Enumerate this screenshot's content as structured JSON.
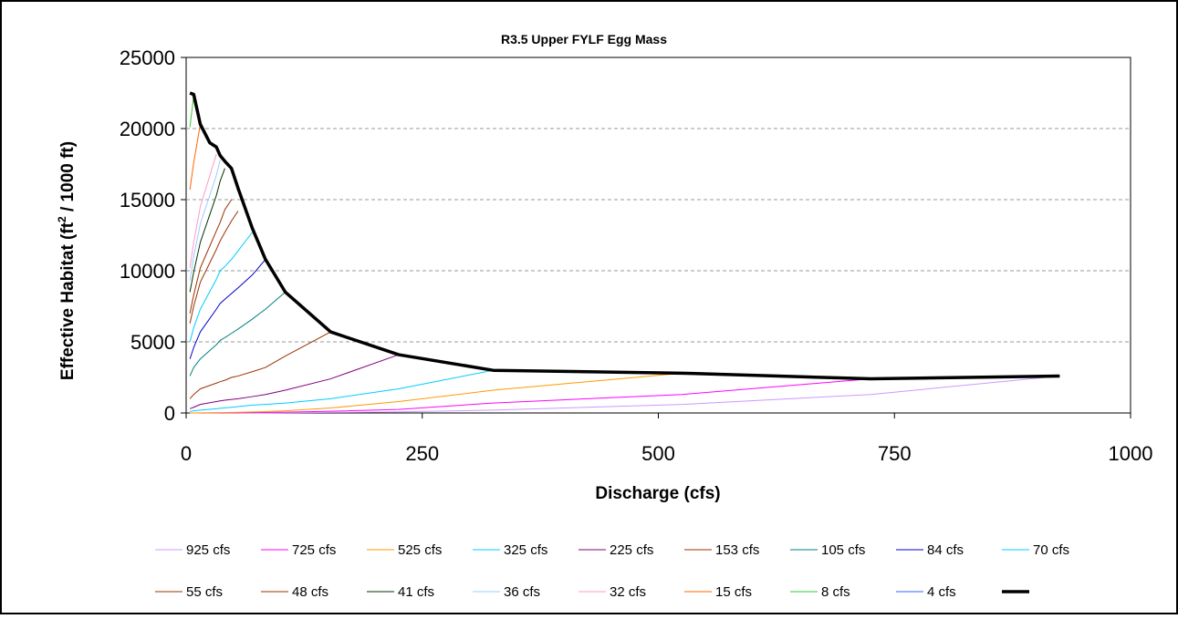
{
  "chart_data": {
    "type": "line",
    "title": "R3.5 Upper FYLF Egg Mass",
    "xlabel": "Discharge (cfs)",
    "ylabel_main": "Effective Habitat (ft",
    "ylabel_sup": "2",
    "ylabel_tail": " / 1000 ft)",
    "xlim": [
      0,
      1000
    ],
    "ylim": [
      0,
      25000
    ],
    "xticks": [
      0,
      250,
      500,
      750,
      1000
    ],
    "yticks": [
      0,
      5000,
      10000,
      15000,
      20000,
      25000
    ],
    "grid": "horizontal dashed",
    "legend_position": "bottom",
    "series": [
      {
        "name": "925 cfs",
        "color": "#cc99ff",
        "width": 1,
        "x": [
          4,
          8,
          15,
          32,
          36,
          41,
          48,
          55,
          70,
          84,
          105,
          153,
          225,
          325,
          525,
          725,
          925
        ],
        "y": [
          0,
          0,
          0,
          5,
          5,
          5,
          5,
          8,
          10,
          10,
          20,
          40,
          80,
          200,
          600,
          1300,
          2600
        ]
      },
      {
        "name": "725 cfs",
        "color": "#ff00ff",
        "width": 1,
        "x": [
          4,
          8,
          15,
          32,
          36,
          41,
          48,
          55,
          70,
          84,
          105,
          153,
          225,
          325,
          525,
          725
        ],
        "y": [
          0,
          0,
          0,
          10,
          10,
          12,
          15,
          20,
          30,
          40,
          60,
          120,
          250,
          700,
          1300,
          2400
        ]
      },
      {
        "name": "525 cfs",
        "color": "#ff9900",
        "width": 1,
        "x": [
          4,
          8,
          15,
          32,
          36,
          41,
          48,
          55,
          70,
          84,
          105,
          153,
          225,
          325,
          525
        ],
        "y": [
          0,
          0,
          5,
          20,
          25,
          30,
          40,
          50,
          70,
          100,
          150,
          350,
          800,
          1600,
          2800
        ]
      },
      {
        "name": "325 cfs",
        "color": "#00ccff",
        "width": 1,
        "x": [
          4,
          8,
          15,
          32,
          36,
          41,
          48,
          55,
          70,
          84,
          105,
          153,
          225,
          325
        ],
        "y": [
          100,
          150,
          200,
          300,
          330,
          360,
          400,
          450,
          550,
          600,
          700,
          1000,
          1700,
          3000
        ]
      },
      {
        "name": "225 cfs",
        "color": "#800080",
        "width": 1,
        "x": [
          4,
          8,
          15,
          32,
          36,
          41,
          48,
          55,
          70,
          84,
          105,
          153,
          225
        ],
        "y": [
          300,
          400,
          600,
          800,
          850,
          900,
          950,
          1000,
          1150,
          1300,
          1600,
          2400,
          4100
        ]
      },
      {
        "name": "153 cfs",
        "color": "#993300",
        "width": 1,
        "x": [
          4,
          8,
          15,
          32,
          36,
          41,
          48,
          55,
          70,
          84,
          105,
          153
        ],
        "y": [
          1000,
          1300,
          1700,
          2100,
          2200,
          2300,
          2500,
          2600,
          2900,
          3200,
          4000,
          5700
        ]
      },
      {
        "name": "105 cfs",
        "color": "#008080",
        "width": 1,
        "x": [
          4,
          8,
          15,
          32,
          36,
          41,
          48,
          55,
          70,
          84,
          105
        ],
        "y": [
          2600,
          3200,
          3800,
          4800,
          5100,
          5300,
          5600,
          5900,
          6600,
          7300,
          8500
        ]
      },
      {
        "name": "84 cfs",
        "color": "#0000cc",
        "width": 1,
        "x": [
          4,
          8,
          15,
          32,
          36,
          41,
          48,
          55,
          70,
          84
        ],
        "y": [
          3800,
          4600,
          5700,
          7300,
          7700,
          8000,
          8400,
          8800,
          9700,
          10800
        ]
      },
      {
        "name": "70 cfs",
        "color": "#00ccff",
        "width": 1,
        "x": [
          4,
          8,
          15,
          32,
          36,
          41,
          48,
          55,
          70
        ],
        "y": [
          5000,
          6000,
          7300,
          9400,
          10000,
          10300,
          10800,
          11400,
          12700
        ]
      },
      {
        "name": "55 cfs",
        "color": "#993300",
        "width": 1,
        "x": [
          4,
          8,
          15,
          32,
          36,
          41,
          48,
          55
        ],
        "y": [
          6300,
          7500,
          9200,
          11500,
          12100,
          12700,
          13500,
          14200
        ]
      },
      {
        "name": "48 cfs",
        "color": "#993300",
        "width": 1,
        "x": [
          4,
          8,
          15,
          32,
          36,
          41,
          48
        ],
        "y": [
          7000,
          8300,
          10200,
          12800,
          13400,
          14300,
          15000
        ]
      },
      {
        "name": "41 cfs",
        "color": "#003300",
        "width": 1,
        "x": [
          4,
          8,
          15,
          32,
          36,
          41
        ],
        "y": [
          8500,
          9900,
          12000,
          15300,
          16300,
          17200
        ]
      },
      {
        "name": "36 cfs",
        "color": "#99ccff",
        "width": 1,
        "x": [
          4,
          8,
          15,
          32,
          36
        ],
        "y": [
          9300,
          11000,
          13300,
          16700,
          17800
        ]
      },
      {
        "name": "32 cfs",
        "color": "#ff99cc",
        "width": 1,
        "x": [
          4,
          8,
          15,
          32
        ],
        "y": [
          10200,
          12000,
          14500,
          18200
        ]
      },
      {
        "name": "15 cfs",
        "color": "#ff6600",
        "width": 1,
        "x": [
          4,
          8,
          15
        ],
        "y": [
          15700,
          17600,
          20300
        ]
      },
      {
        "name": "8 cfs",
        "color": "#33cc33",
        "width": 1,
        "x": [
          4,
          8
        ],
        "y": [
          20100,
          22300
        ]
      },
      {
        "name": "4 cfs",
        "color": "#3366ff",
        "width": 1,
        "x": [
          4
        ],
        "y": [
          22500
        ]
      },
      {
        "name": "",
        "color": "#000000",
        "width": 3.5,
        "x": [
          4,
          8,
          15,
          25,
          32,
          36,
          41,
          48,
          55,
          70,
          84,
          105,
          153,
          225,
          325,
          525,
          725,
          925
        ],
        "y": [
          22500,
          22400,
          20300,
          19000,
          18700,
          18100,
          17700,
          17200,
          15800,
          13000,
          10800,
          8500,
          5700,
          4100,
          3000,
          2800,
          2400,
          2600
        ]
      }
    ]
  }
}
